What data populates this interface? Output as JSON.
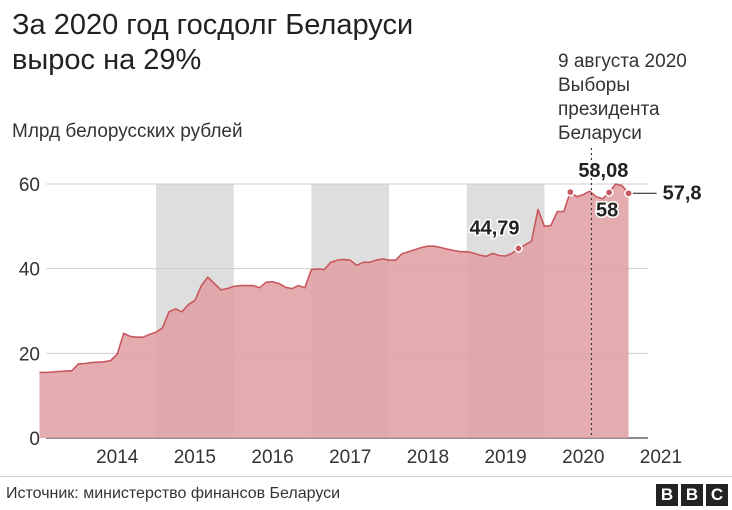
{
  "header": {
    "title": "За 2020 год госдолг Беларуси\nвырос на 29%",
    "unit_label": "Млрд белорусских рублей",
    "annotation": "9 августа 2020\nВыборы\nпрезидента\nБеларуси"
  },
  "footer": {
    "source": "Источник: министерство финансов Беларуси",
    "logo_letters": [
      "B",
      "B",
      "C"
    ]
  },
  "colors": {
    "area_fill": "#e0a0a3",
    "area_line": "#c8585f",
    "band": "#dedede",
    "marker": "#c8585f"
  },
  "chart_data": {
    "type": "area",
    "xlabel": "",
    "ylabel": "Млрд белорусских рублей",
    "ylim": [
      0,
      60
    ],
    "yticks": [
      0,
      20,
      40,
      60
    ],
    "x_year_labels": [
      "2014",
      "2015",
      "2016",
      "2017",
      "2018",
      "2019",
      "2020",
      "2021"
    ],
    "shaded_years": [
      "2015",
      "2017",
      "2019"
    ],
    "grid": true,
    "event": {
      "date": "2020-08-09",
      "label": "9 августа 2020 Выборы президента Беларуси"
    },
    "series": [
      {
        "x": [
          "2013-07",
          "2013-08",
          "2013-09",
          "2013-10",
          "2013-11",
          "2013-12",
          "2014-01",
          "2014-02",
          "2014-03",
          "2014-04",
          "2014-05",
          "2014-06",
          "2014-07",
          "2014-08",
          "2014-09",
          "2014-10",
          "2014-11",
          "2014-12",
          "2015-01",
          "2015-02",
          "2015-03",
          "2015-04",
          "2015-05",
          "2015-06",
          "2015-07",
          "2015-08",
          "2015-09",
          "2015-10",
          "2015-11",
          "2015-12",
          "2016-01",
          "2016-02",
          "2016-03",
          "2016-04",
          "2016-05",
          "2016-06",
          "2016-07",
          "2016-08",
          "2016-09",
          "2016-10",
          "2016-11",
          "2016-12",
          "2017-01",
          "2017-02",
          "2017-03",
          "2017-04",
          "2017-05",
          "2017-06",
          "2017-07",
          "2017-08",
          "2017-09",
          "2017-10",
          "2017-11",
          "2017-12",
          "2018-01",
          "2018-02",
          "2018-03",
          "2018-04",
          "2018-05",
          "2018-06",
          "2018-07",
          "2018-08",
          "2018-09",
          "2018-10",
          "2018-11",
          "2018-12",
          "2019-01",
          "2019-02",
          "2019-03",
          "2019-04",
          "2019-05",
          "2019-06",
          "2019-07",
          "2019-08",
          "2019-09",
          "2019-10",
          "2019-11",
          "2019-12",
          "2020-01",
          "2020-02",
          "2020-03",
          "2020-04",
          "2020-05",
          "2020-06",
          "2020-07",
          "2020-08",
          "2020-09",
          "2020-10",
          "2020-11",
          "2020-12",
          "2021-01",
          "2021-02"
        ],
        "values": [
          15.5,
          15.5,
          15.6,
          15.7,
          15.8,
          15.9,
          17.5,
          17.6,
          17.8,
          17.9,
          18.0,
          18.3,
          19.8,
          24.7,
          24.0,
          23.8,
          23.8,
          24.5,
          25.0,
          26.0,
          29.8,
          30.5,
          29.8,
          31.5,
          32.5,
          36.0,
          38.0,
          36.5,
          35.0,
          35.3,
          35.8,
          36.0,
          36.0,
          36.0,
          35.5,
          36.8,
          36.9,
          36.5,
          35.6,
          35.3,
          36.0,
          35.5,
          39.8,
          39.9,
          39.8,
          41.5,
          42.0,
          42.2,
          42.0,
          40.8,
          41.5,
          41.5,
          42.0,
          42.3,
          42.0,
          42.0,
          43.5,
          44.0,
          44.5,
          45.0,
          45.3,
          45.3,
          45.0,
          44.6,
          44.3,
          44.0,
          44.0,
          43.7,
          43.2,
          42.9,
          43.6,
          43.1,
          43.0,
          43.6,
          44.79,
          45.6,
          46.5,
          54.0,
          50.0,
          50.2,
          53.5,
          53.5,
          58.08,
          57.0,
          57.5,
          58.3,
          57.0,
          56.5,
          58.0,
          60.0,
          59.6,
          57.8
        ],
        "data_labels": [
          {
            "x": "2019-09",
            "text": "44,79"
          },
          {
            "x": "2020-05",
            "text": "58,08"
          },
          {
            "x": "2020-11",
            "text": "58"
          },
          {
            "x": "2021-02",
            "text": "57,8"
          }
        ]
      }
    ]
  }
}
